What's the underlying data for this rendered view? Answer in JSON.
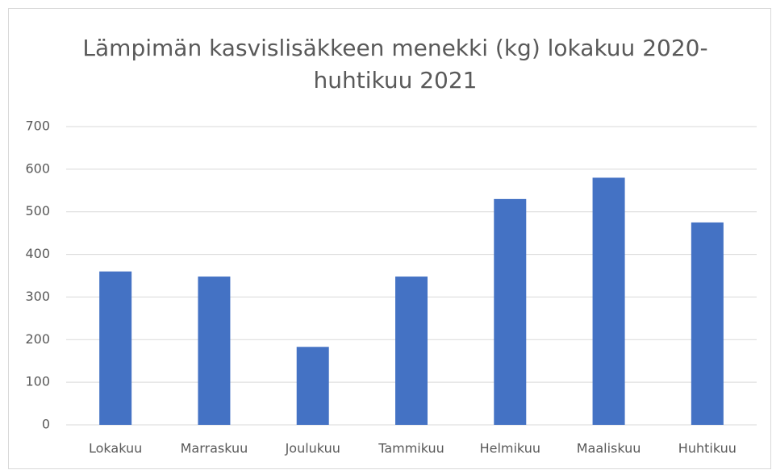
{
  "chart_data": {
    "type": "bar",
    "title": "Lämpimän kasvislisäkkeen menekki (kg) lokakuu 2020-huhtikuu 2021",
    "categories": [
      "Lokakuu",
      "Marraskuu",
      "Joulukuu",
      "Tammikuu",
      "Helmikuu",
      "Maaliskuu",
      "Huhtikuu"
    ],
    "values": [
      360,
      348,
      183,
      348,
      530,
      580,
      475
    ],
    "color": "#4472c4",
    "ylim": [
      0,
      700
    ],
    "yticks": [
      0,
      100,
      200,
      300,
      400,
      500,
      600,
      700
    ],
    "grid": true
  }
}
